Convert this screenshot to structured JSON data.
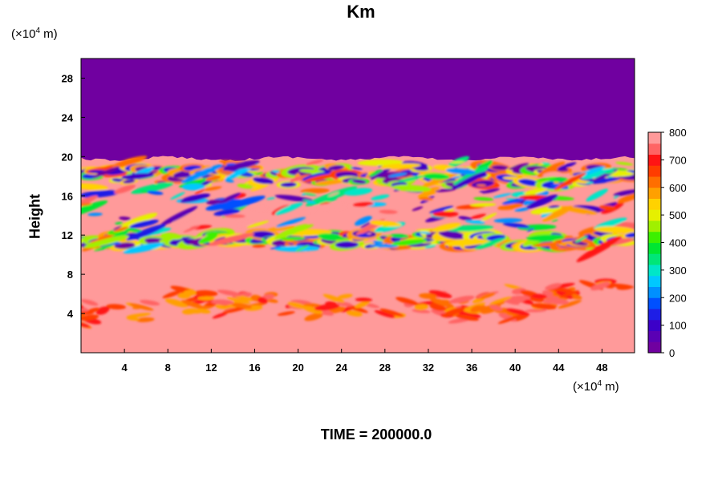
{
  "chart_data": {
    "type": "heatmap",
    "title": "Km",
    "ylabel": "Height",
    "xunit": {
      "prefix": "(×10",
      "exp": "4",
      "suffix": " m)"
    },
    "yunit": {
      "prefix": "(×10",
      "exp": "4",
      "suffix": " m)"
    },
    "xlim": [
      0,
      51
    ],
    "ylim": [
      0,
      30
    ],
    "xticks": [
      4,
      8,
      12,
      16,
      20,
      24,
      28,
      32,
      36,
      40,
      44,
      48
    ],
    "yticks": [
      4,
      8,
      12,
      16,
      20,
      24,
      28
    ],
    "colorbar": {
      "min": 0,
      "max": 800,
      "ticks": [
        0,
        100,
        200,
        300,
        400,
        500,
        600,
        700,
        800
      ],
      "levels": [
        "#7000a0",
        "#5a00b4",
        "#3c00c8",
        "#1e1ee6",
        "#0050ff",
        "#0090ff",
        "#00c8ff",
        "#00e6c8",
        "#00e678",
        "#00e632",
        "#3cf000",
        "#a0f000",
        "#e6f000",
        "#ffd200",
        "#ffa000",
        "#ff6e00",
        "#ff3c00",
        "#ff1414",
        "#ff6464",
        "#ff9a9a"
      ]
    },
    "background_value": 800,
    "upper_value": 0,
    "tropopause_height": 19.8,
    "band_heights": [
      11.5,
      18.0
    ],
    "time": "TIME = 200000.0"
  }
}
